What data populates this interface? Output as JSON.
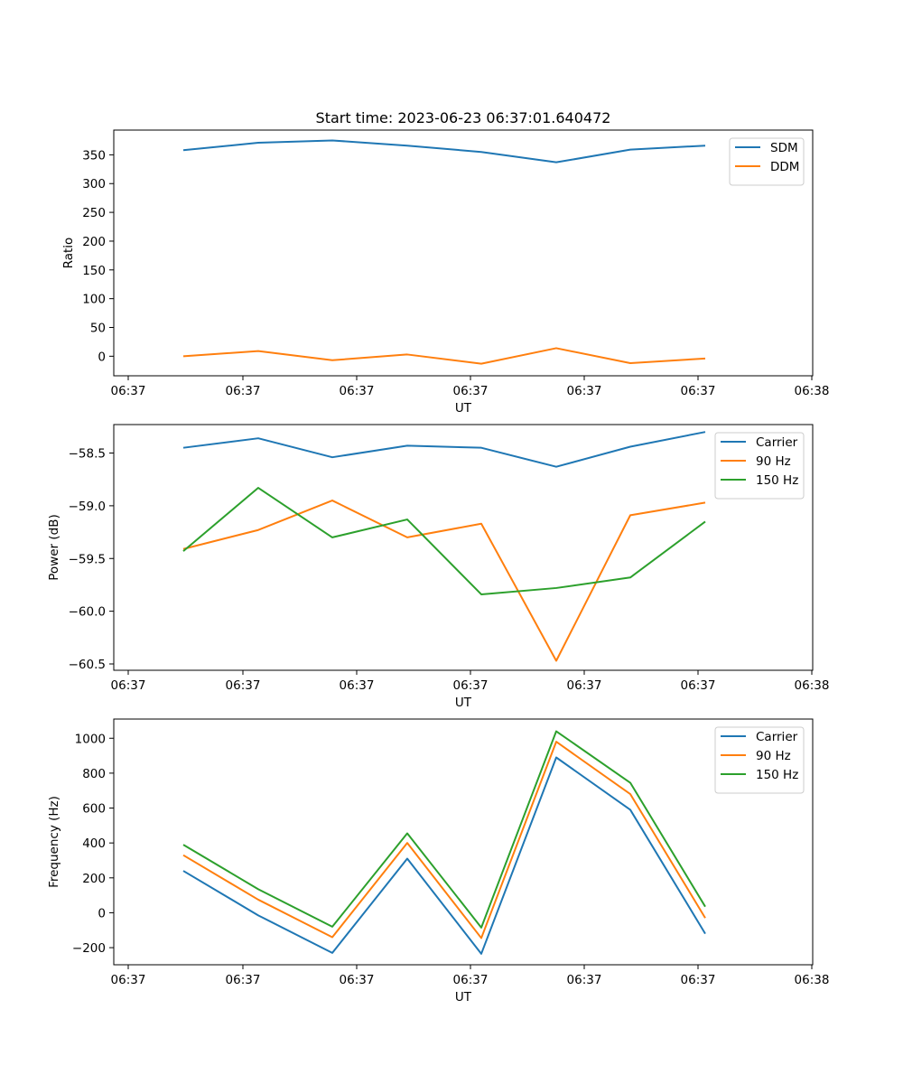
{
  "figure": {
    "title": "Start time: 2023-06-23 06:37:01.640472"
  },
  "chart_data": [
    {
      "type": "line",
      "title": "Start time: 2023-06-23 06:37:01.640472",
      "xlabel": "UT",
      "ylabel": "Ratio",
      "x_tick_labels": [
        "06:37",
        "06:37",
        "06:37",
        "06:37",
        "06:37",
        "06:37",
        "06:38"
      ],
      "y_ticks": [
        0,
        50,
        100,
        150,
        200,
        250,
        300,
        350
      ],
      "ylim": [
        -34,
        393
      ],
      "grid": false,
      "legend_position": "upper right",
      "series": [
        {
          "name": "SDM",
          "color": "#1f77b4",
          "values": [
            358,
            371,
            375,
            366,
            355,
            337,
            359,
            366
          ]
        },
        {
          "name": "DDM",
          "color": "#ff7f0e",
          "values": [
            0,
            9,
            -7,
            3,
            -13,
            14,
            -12,
            -4
          ]
        }
      ]
    },
    {
      "type": "line",
      "title": "",
      "xlabel": "UT",
      "ylabel": "Power (dB)",
      "x_tick_labels": [
        "06:37",
        "06:37",
        "06:37",
        "06:37",
        "06:37",
        "06:37",
        "06:38"
      ],
      "y_ticks": [
        -60.5,
        -60.0,
        -59.5,
        -59.0,
        -58.5
      ],
      "y_tick_labels": [
        "−60.5",
        "−60.0",
        "−59.5",
        "−59.0",
        "−58.5"
      ],
      "ylim": [
        -60.56,
        -58.23
      ],
      "grid": false,
      "legend_position": "upper right",
      "series": [
        {
          "name": "Carrier",
          "color": "#1f77b4",
          "values": [
            -58.45,
            -58.36,
            -58.54,
            -58.43,
            -58.45,
            -58.63,
            -58.44,
            -58.3
          ]
        },
        {
          "name": "90 Hz",
          "color": "#ff7f0e",
          "values": [
            -59.41,
            -59.23,
            -58.95,
            -59.3,
            -59.17,
            -60.47,
            -59.09,
            -58.97
          ]
        },
        {
          "name": "150 Hz",
          "color": "#2ca02c",
          "values": [
            -59.43,
            -58.83,
            -59.3,
            -59.13,
            -59.84,
            -59.78,
            -59.68,
            -59.15
          ]
        }
      ]
    },
    {
      "type": "line",
      "title": "",
      "xlabel": "UT",
      "ylabel": "Frequency (Hz)",
      "x_tick_labels": [
        "06:37",
        "06:37",
        "06:37",
        "06:37",
        "06:37",
        "06:37",
        "06:38"
      ],
      "y_ticks": [
        -200,
        0,
        200,
        400,
        600,
        800,
        1000
      ],
      "y_tick_labels": [
        "−200",
        "0",
        "200",
        "400",
        "600",
        "800",
        "1000"
      ],
      "ylim": [
        -298,
        1110
      ],
      "grid": false,
      "legend_position": "upper right",
      "series": [
        {
          "name": "Carrier",
          "color": "#1f77b4",
          "values": [
            240,
            -15,
            -230,
            310,
            -235,
            890,
            590,
            -120
          ]
        },
        {
          "name": "90 Hz",
          "color": "#ff7f0e",
          "values": [
            330,
            75,
            -140,
            400,
            -145,
            980,
            680,
            -30
          ]
        },
        {
          "name": "150 Hz",
          "color": "#2ca02c",
          "values": [
            390,
            135,
            -80,
            455,
            -85,
            1040,
            745,
            35
          ]
        }
      ]
    }
  ]
}
